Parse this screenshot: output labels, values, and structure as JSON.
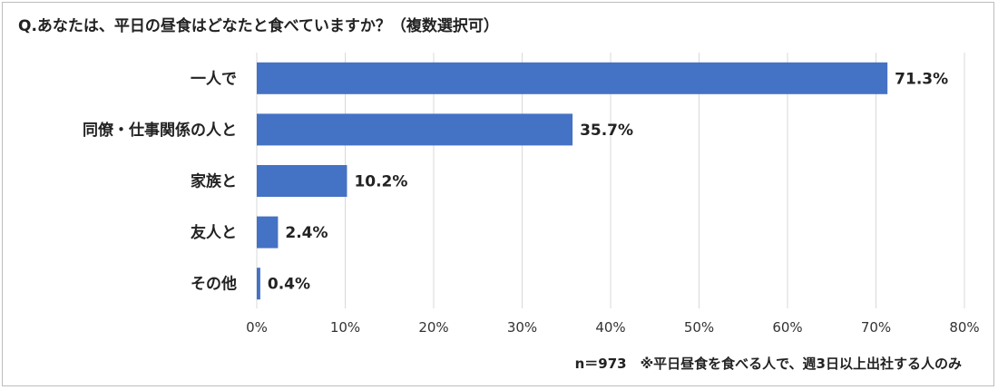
{
  "title": "Q.あなたは、平日の昼食はどなたと食べていますか？（複数選択可）",
  "note": "n＝973　※平日昼食を食べる人で、週3日以上出社する人のみ",
  "colors": {
    "bar": "#4472c4",
    "grid": "#d9d9d9"
  },
  "chart_data": {
    "type": "bar",
    "orientation": "horizontal",
    "categories": [
      "一人で",
      "同僚・仕事関係の人と",
      "家族と",
      "友人と",
      "その他"
    ],
    "values": [
      71.3,
      35.7,
      10.2,
      2.4,
      0.4
    ],
    "value_labels": [
      "71.3%",
      "35.7%",
      "10.2%",
      "2.4%",
      "0.4%"
    ],
    "xlim": [
      0,
      80
    ],
    "xticks": [
      0,
      10,
      20,
      30,
      40,
      50,
      60,
      70,
      80
    ],
    "xtick_labels": [
      "0%",
      "10%",
      "20%",
      "30%",
      "40%",
      "50%",
      "60%",
      "70%",
      "80%"
    ],
    "grid": true,
    "legend": "none"
  }
}
